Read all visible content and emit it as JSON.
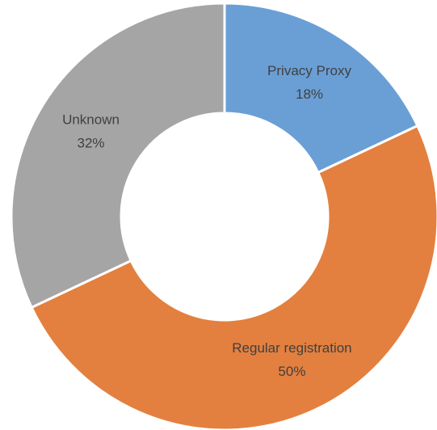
{
  "chart_data": {
    "type": "donut",
    "categories": [
      "Privacy Proxy",
      "Regular registration",
      "Unknown"
    ],
    "values": [
      18,
      50,
      32
    ],
    "value_labels": [
      "18%",
      "50%",
      "32%"
    ],
    "colors": [
      "#6a9fd6",
      "#e3803f",
      "#a5a5a5"
    ]
  }
}
